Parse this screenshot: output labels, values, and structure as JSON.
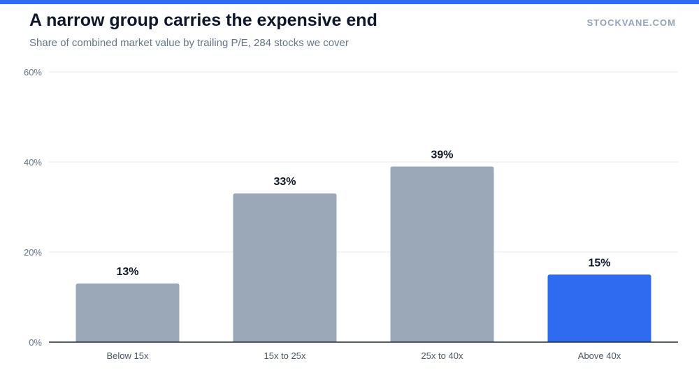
{
  "brand": "STOCKVANE.COM",
  "colors": {
    "accent": "#2f6bf0",
    "bar_default": "#9ba8b7",
    "top_bar": "#2f6bf0"
  },
  "chart_data": {
    "type": "bar",
    "title": "A narrow group carries the expensive end",
    "subtitle": "Share of combined market value by trailing P/E, 284 stocks we cover",
    "xlabel": "",
    "ylabel": "",
    "categories": [
      "Below 15x",
      "15x to 25x",
      "25x to 40x",
      "Above 40x"
    ],
    "values": [
      13,
      33,
      39,
      15
    ],
    "value_labels": [
      "13%",
      "33%",
      "39%",
      "15%"
    ],
    "highlight": [
      false,
      false,
      false,
      true
    ],
    "ylim": [
      0,
      60
    ],
    "yticks": [
      0,
      20,
      40,
      60
    ],
    "ytick_labels": [
      "0%",
      "20%",
      "40%",
      "60%"
    ],
    "grid": true,
    "legend": "none"
  }
}
